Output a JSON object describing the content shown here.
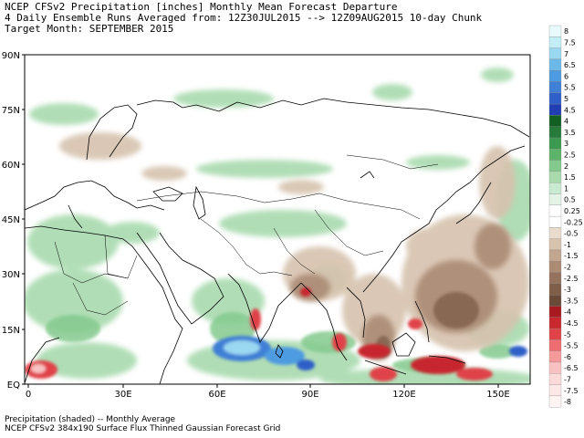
{
  "header": {
    "line1": "NCEP CFSv2 Precipitation [inches] Monthly Mean Forecast Departure",
    "line2": "4 Daily Ensemble Runs Averaged from: 12Z30JUL2015 --> 12Z09AUG2015 10-day Chunk",
    "line3": "Target Month: SEPTEMBER 2015"
  },
  "axes": {
    "lat_labels": [
      "90N",
      "75N",
      "60N",
      "45N",
      "30N",
      "15N",
      "EQ"
    ],
    "lon_labels": [
      "0",
      "30E",
      "60E",
      "90E",
      "120E",
      "150E"
    ]
  },
  "colorbar": {
    "labels": [
      "8",
      "7.5",
      "7",
      "6.5",
      "6",
      "5.5",
      "5",
      "4.5",
      "4",
      "3.5",
      "3",
      "2.5",
      "2",
      "1.5",
      "1",
      "0.5",
      "0.25",
      "-0.25",
      "-0.5",
      "-1",
      "-1.5",
      "-2",
      "-2.5",
      "-3",
      "-3.5",
      "-4",
      "-4.5",
      "-5",
      "-5.5",
      "-6",
      "-6.5",
      "-7",
      "-7.5",
      "-8"
    ],
    "colors": [
      "#e8fafc",
      "#c4eef6",
      "#9ad7f0",
      "#6cb9e9",
      "#4d9be0",
      "#3f7fd6",
      "#2f5fc8",
      "#1f3fb2",
      "#125f24",
      "#267a3a",
      "#3b9a4f",
      "#5bb46a",
      "#84ca8e",
      "#a8daae",
      "#c9ead0",
      "#e3f4e6",
      "#ffffff",
      "#ffffff",
      "#e9dccd",
      "#d6c2ad",
      "#c2a68f",
      "#ab8b74",
      "#94725d",
      "#7f5e4a",
      "#6a4b39",
      "#a81a20",
      "#c8282e",
      "#e04348",
      "#ef6d70",
      "#f59a9a",
      "#f8c2c2",
      "#fbdada",
      "#fde8e8",
      "#fff3f3"
    ]
  },
  "footer": {
    "line1": "Precipitation (shaded) -- Monthly Average",
    "line2": "NCEP CFSv2 384x190 Surface Flux Thinned Gaussian Forecast Grid"
  }
}
